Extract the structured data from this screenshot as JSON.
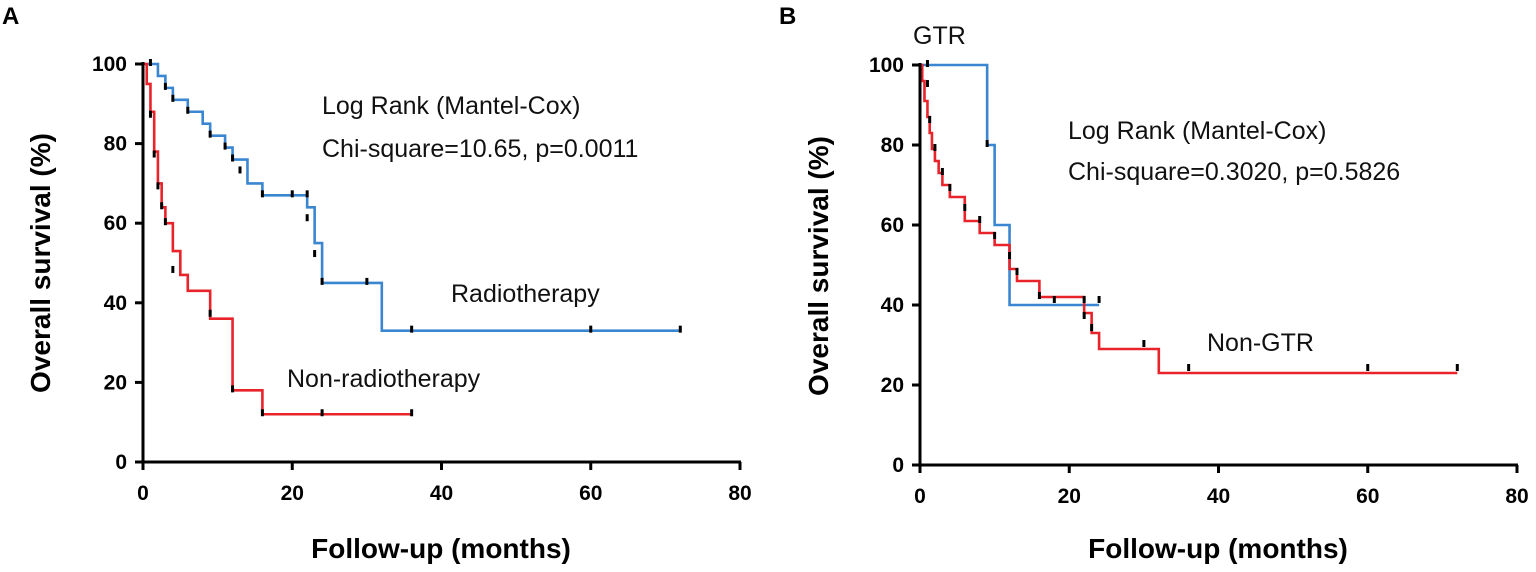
{
  "chart_data": [
    {
      "type": "line",
      "subtype": "kaplan-meier",
      "panel": "A",
      "xlabel": "Follow-up (months)",
      "ylabel": "Overall survival (%)",
      "xlim": [
        0,
        80
      ],
      "ylim": [
        0,
        100
      ],
      "xticks": [
        "0",
        "20",
        "40",
        "60",
        "80"
      ],
      "yticks": [
        "0",
        "20",
        "40",
        "60",
        "80",
        "100"
      ],
      "annotation": [
        "Log Rank (Mantel-Cox)",
        "Chi-square=10.65, p=0.0011"
      ],
      "series": [
        {
          "name": "Radiotherapy",
          "color": "#3a86d1",
          "steps": [
            [
              0,
              100
            ],
            [
              2,
              97
            ],
            [
              3,
              94
            ],
            [
              4,
              91
            ],
            [
              6,
              88
            ],
            [
              8,
              85
            ],
            [
              9,
              82
            ],
            [
              11,
              79
            ],
            [
              12,
              76
            ],
            [
              14,
              70
            ],
            [
              16,
              67
            ],
            [
              22,
              64
            ],
            [
              23,
              55
            ],
            [
              24,
              45
            ],
            [
              32,
              33
            ],
            [
              72,
              33
            ]
          ],
          "censors": [
            [
              1,
              100
            ],
            [
              3,
              94
            ],
            [
              4,
              91
            ],
            [
              6,
              88
            ],
            [
              9,
              82
            ],
            [
              11,
              79
            ],
            [
              12,
              76
            ],
            [
              13,
              73
            ],
            [
              16,
              67
            ],
            [
              20,
              67
            ],
            [
              22,
              67
            ],
            [
              22,
              61
            ],
            [
              23,
              52
            ],
            [
              24,
              45
            ],
            [
              30,
              45
            ],
            [
              36,
              33
            ],
            [
              60,
              33
            ],
            [
              72,
              33
            ]
          ]
        },
        {
          "name": "Non-radiotherapy",
          "color": "#e8232a",
          "steps": [
            [
              0,
              100
            ],
            [
              0.5,
              95
            ],
            [
              1,
              88
            ],
            [
              1.5,
              78
            ],
            [
              2,
              70
            ],
            [
              2.5,
              64
            ],
            [
              3,
              60
            ],
            [
              4,
              53
            ],
            [
              5,
              47
            ],
            [
              6,
              43
            ],
            [
              9,
              36
            ],
            [
              12,
              18
            ],
            [
              16,
              12
            ],
            [
              36,
              12
            ]
          ],
          "censors": [
            [
              1,
              87
            ],
            [
              1.5,
              77
            ],
            [
              2,
              69
            ],
            [
              2.5,
              64
            ],
            [
              3,
              60
            ],
            [
              4,
              48
            ],
            [
              9,
              37
            ],
            [
              12,
              18
            ],
            [
              16,
              12
            ],
            [
              24,
              12
            ],
            [
              36,
              12
            ]
          ]
        }
      ]
    },
    {
      "type": "line",
      "subtype": "kaplan-meier",
      "panel": "B",
      "xlabel": "Follow-up (months)",
      "ylabel": "Overall survival (%)",
      "xlim": [
        0,
        80
      ],
      "ylim": [
        0,
        100
      ],
      "xticks": [
        "0",
        "20",
        "40",
        "60",
        "80"
      ],
      "yticks": [
        "0",
        "20",
        "40",
        "60",
        "80",
        "100"
      ],
      "annotation": [
        "Log Rank (Mantel-Cox)",
        "Chi-square=0.3020, p=0.5826"
      ],
      "series": [
        {
          "name": "GTR",
          "color": "#3a86d1",
          "steps": [
            [
              0,
              100
            ],
            [
              9,
              80
            ],
            [
              10,
              60
            ],
            [
              12,
              40
            ],
            [
              24,
              40
            ]
          ],
          "censors": [
            [
              1,
              100
            ],
            [
              9,
              80
            ],
            [
              24,
              41
            ]
          ]
        },
        {
          "name": "Non-GTR",
          "color": "#e8232a",
          "steps": [
            [
              0,
              100
            ],
            [
              0.3,
              96
            ],
            [
              0.6,
              91
            ],
            [
              1,
              87
            ],
            [
              1.3,
              83
            ],
            [
              1.6,
              79
            ],
            [
              2,
              76
            ],
            [
              2.5,
              73
            ],
            [
              3,
              70
            ],
            [
              4,
              67
            ],
            [
              6,
              61
            ],
            [
              8,
              58
            ],
            [
              10,
              55
            ],
            [
              12,
              49
            ],
            [
              13,
              46
            ],
            [
              16,
              42
            ],
            [
              22,
              38
            ],
            [
              23,
              33
            ],
            [
              24,
              29
            ],
            [
              32,
              23
            ],
            [
              72,
              23
            ]
          ],
          "censors": [
            [
              1,
              95
            ],
            [
              1.3,
              86
            ],
            [
              2,
              79
            ],
            [
              3,
              73
            ],
            [
              4,
              69
            ],
            [
              6,
              64
            ],
            [
              8,
              61
            ],
            [
              10,
              57
            ],
            [
              12,
              52
            ],
            [
              13,
              48
            ],
            [
              16,
              42
            ],
            [
              18,
              41
            ],
            [
              22,
              41
            ],
            [
              22,
              37
            ],
            [
              23,
              34
            ],
            [
              30,
              30
            ],
            [
              36,
              24
            ],
            [
              60,
              24
            ],
            [
              72,
              24
            ]
          ]
        }
      ]
    }
  ],
  "labels": {
    "panelA": {
      "letter": "A",
      "annot1": "Log Rank (Mantel-Cox)",
      "annot2": "Chi-square=10.65, p=0.0011",
      "series1": "Radiotherapy",
      "series2": "Non-radiotherapy",
      "xlabel": "Follow-up (months)",
      "ylabel": "Overall survival (%)"
    },
    "panelB": {
      "letter": "B",
      "annot1": "Log Rank (Mantel-Cox)",
      "annot2": "Chi-square=0.3020, p=0.5826",
      "series1": "GTR",
      "series2": "Non-GTR",
      "xlabel": "Follow-up (months)",
      "ylabel": "Overall survival (%)"
    }
  }
}
